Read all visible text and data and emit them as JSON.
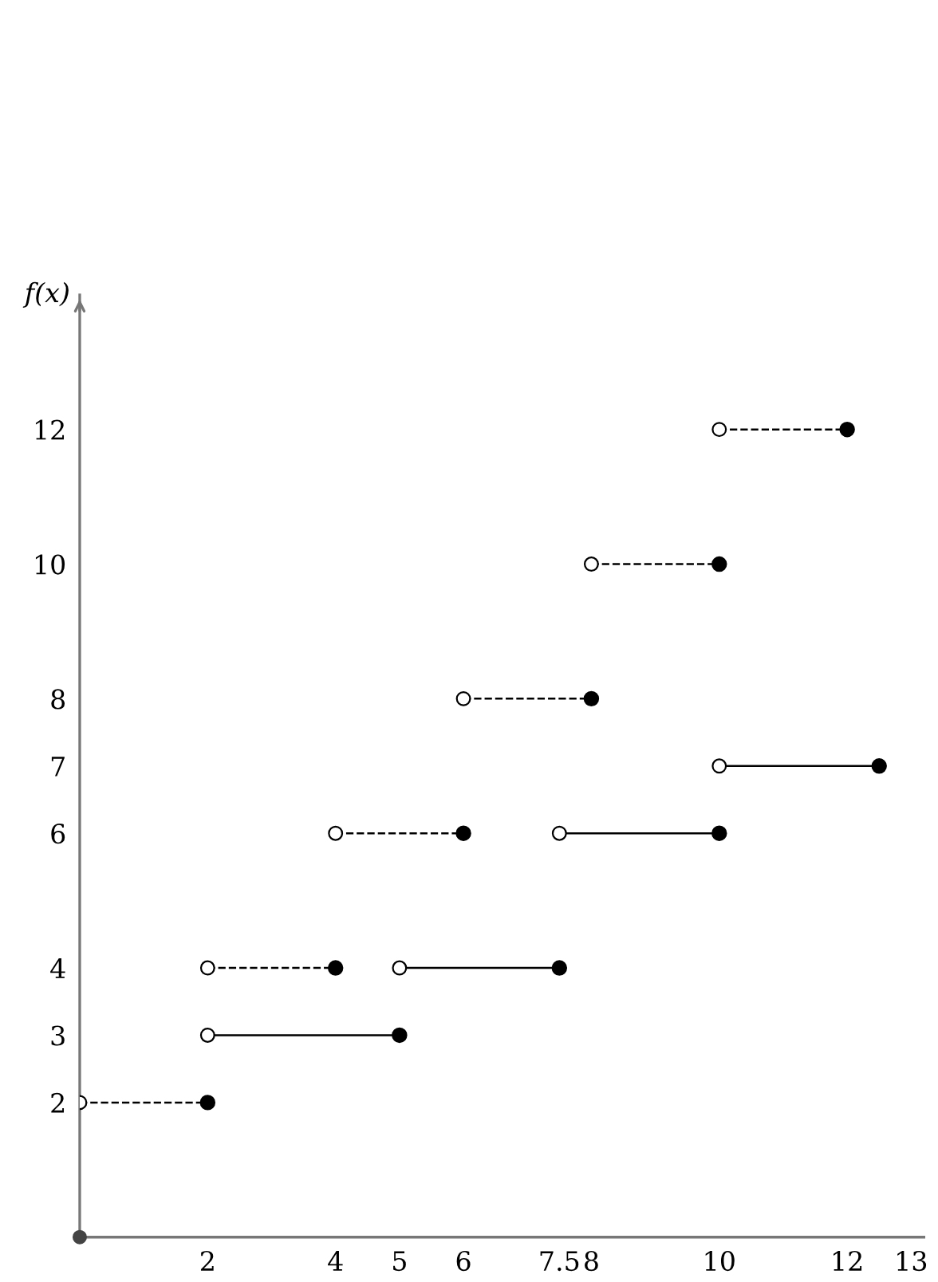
{
  "chart_data": {
    "type": "line",
    "ylabel": "f(x)",
    "xlim": [
      0,
      13.2
    ],
    "ylim": [
      0,
      14
    ],
    "xticks": [
      2,
      4,
      5,
      6,
      7.5,
      8,
      10,
      12,
      13
    ],
    "yticks": [
      2,
      3,
      4,
      6,
      7,
      8,
      10,
      12
    ],
    "grid": false,
    "marker": "circle",
    "series": [
      {
        "color": "#000000",
        "line_style": "dashed",
        "x": [
          0,
          2,
          null,
          2,
          4,
          null,
          4,
          6,
          null,
          6,
          8,
          null,
          8,
          10,
          null,
          10,
          12
        ],
        "values": [
          2,
          2,
          null,
          4,
          4,
          null,
          6,
          6,
          null,
          8,
          8,
          null,
          10,
          10,
          null,
          12,
          12
        ]
      },
      {
        "color": "#000000",
        "line_style": "solid",
        "x": [
          2,
          5,
          null,
          5,
          7.5,
          null,
          7.5,
          10,
          null,
          10,
          12.5
        ],
        "values": [
          3,
          3,
          null,
          4,
          4,
          null,
          6,
          6,
          null,
          7,
          7
        ]
      },
      {
        "type": "scatter",
        "color": "#444444",
        "x": [
          0
        ],
        "values": [
          0
        ]
      }
    ]
  }
}
